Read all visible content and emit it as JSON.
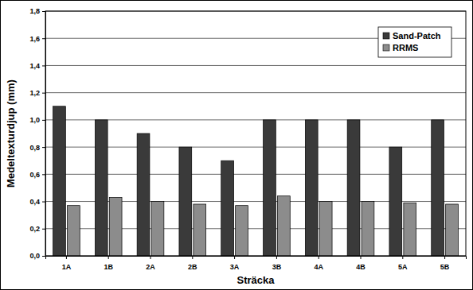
{
  "chart_data": {
    "type": "bar",
    "x_label": "Sträcka",
    "y_label": "Medeltexturdjup (mm)",
    "categories": [
      "1A",
      "1B",
      "2A",
      "2B",
      "3A",
      "3B",
      "4A",
      "4B",
      "5A",
      "5B"
    ],
    "series": [
      {
        "name": "Sand-Patch",
        "color": "#3a3a3a",
        "values": [
          1.1,
          1.0,
          0.9,
          0.8,
          0.7,
          1.0,
          1.0,
          1.0,
          0.8,
          1.0
        ]
      },
      {
        "name": "RRMS",
        "color": "#8c8c8c",
        "values": [
          0.37,
          0.43,
          0.4,
          0.38,
          0.37,
          0.44,
          0.4,
          0.4,
          0.39,
          0.38
        ]
      }
    ],
    "ylim": [
      0,
      1.8
    ],
    "yticks": [
      {
        "value": 0,
        "label": "0,0"
      },
      {
        "value": 0.2,
        "label": "0,2"
      },
      {
        "value": 0.4,
        "label": "0,4"
      },
      {
        "value": 0.6,
        "label": "0,6"
      },
      {
        "value": 0.8,
        "label": "0,8"
      },
      {
        "value": 1,
        "label": "1,0"
      },
      {
        "value": 1.2,
        "label": "1,2"
      },
      {
        "value": 1.4,
        "label": "1,4"
      },
      {
        "value": 1.6,
        "label": "1,6"
      },
      {
        "value": 1.8,
        "label": "1,8"
      }
    ],
    "grid": true,
    "legend": "upper right"
  }
}
